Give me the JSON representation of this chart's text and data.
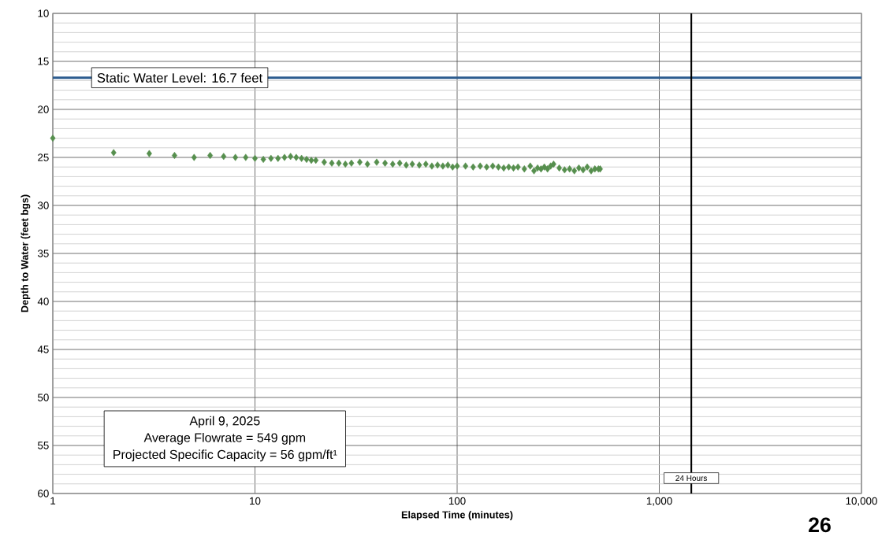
{
  "chart_data": {
    "type": "scatter",
    "xlabel": "Elapsed Time (minutes)",
    "ylabel": "Depth to Water (feet bgs)",
    "x": [
      1,
      2,
      3,
      4,
      5,
      6,
      7,
      8,
      9,
      10,
      11,
      12,
      13,
      14,
      15,
      16,
      17,
      18,
      19,
      20,
      22,
      24,
      26,
      28,
      30,
      33,
      36,
      40,
      44,
      48,
      52,
      56,
      60,
      65,
      70,
      75,
      80,
      85,
      90,
      95,
      100,
      110,
      120,
      130,
      140,
      150,
      160,
      170,
      180,
      190,
      200,
      215,
      230,
      240,
      250,
      260,
      270,
      280,
      290,
      300,
      320,
      340,
      360,
      380,
      400,
      420,
      440,
      460,
      480,
      500,
      510
    ],
    "values": [
      23.0,
      24.5,
      24.6,
      24.8,
      25.0,
      24.8,
      24.9,
      25.0,
      25.0,
      25.1,
      25.2,
      25.1,
      25.1,
      25.0,
      24.9,
      25.0,
      25.1,
      25.2,
      25.3,
      25.3,
      25.5,
      25.6,
      25.6,
      25.7,
      25.6,
      25.5,
      25.7,
      25.5,
      25.6,
      25.7,
      25.6,
      25.8,
      25.7,
      25.8,
      25.7,
      25.9,
      25.8,
      25.9,
      25.8,
      26.0,
      25.9,
      25.9,
      26.0,
      25.9,
      26.0,
      25.9,
      26.0,
      26.1,
      26.0,
      26.1,
      26.0,
      26.2,
      25.9,
      26.4,
      26.1,
      26.2,
      26.0,
      26.2,
      25.9,
      25.7,
      26.1,
      26.3,
      26.2,
      26.4,
      26.1,
      26.3,
      26.0,
      26.4,
      26.2,
      26.2,
      26.2
    ],
    "color": "#568f4e",
    "marker": "diamond",
    "log": "x",
    "xlim": [
      1,
      10000
    ],
    "ylim": [
      60,
      10
    ],
    "xticks": [
      1,
      10,
      100,
      {
        "value": 1000,
        "label": "1,000"
      },
      {
        "value": 10000,
        "label": "10,000"
      }
    ],
    "yticks": [
      10,
      15,
      20,
      25,
      30,
      35,
      40,
      45,
      50,
      55,
      60
    ],
    "grid": true,
    "ref_lines": [
      {
        "axis": "y",
        "value": 16.7,
        "label": "Static Water Level: 16.7 feet",
        "color": "#2c5c8f",
        "line_style": "solid"
      },
      {
        "axis": "x",
        "value": 1440,
        "label": "24 Hours",
        "color": "#000000",
        "line_style": "solid"
      }
    ],
    "annotations": [
      "April 9, 2025",
      "Average Flowrate = 549 gpm",
      "Projected Specific Capacity = 56 gpm/ft¹",
      "26"
    ]
  }
}
